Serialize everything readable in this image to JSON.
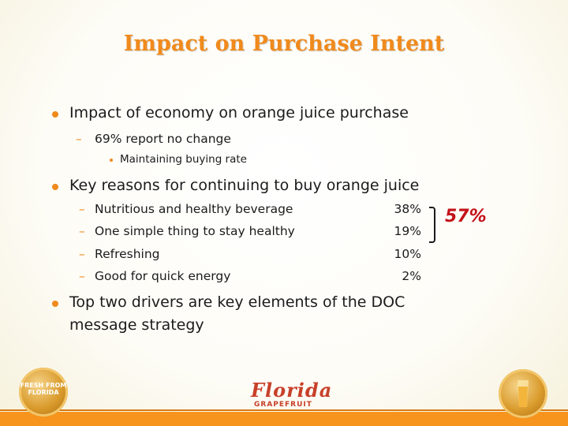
{
  "title": "Impact on Purchase Intent",
  "bullets": {
    "b1": "Impact of economy on orange juice purchase",
    "b1_sub": "69% report no change",
    "b1_subsub": "Maintaining buying rate",
    "b2": "Key reasons for continuing to buy orange juice",
    "reasons": [
      {
        "label": "Nutritious and healthy beverage",
        "value": "38%"
      },
      {
        "label": "One simple thing to stay healthy",
        "value": "19%"
      },
      {
        "label": "Refreshing",
        "value": "10%"
      },
      {
        "label": "Good for quick energy",
        "value": "2%"
      }
    ],
    "combined": "57%",
    "b3_line1": "Top two drivers are key elements of the DOC",
    "b3_line2": "message strategy"
  },
  "footer": {
    "left_seal_text": "FRESH FROM FLORIDA",
    "logo_main": "Florida",
    "logo_sub": "GRAPEFRUIT"
  },
  "colors": {
    "title": "#f08a1c",
    "accent": "#c4121a",
    "footer": "#f7941d"
  }
}
